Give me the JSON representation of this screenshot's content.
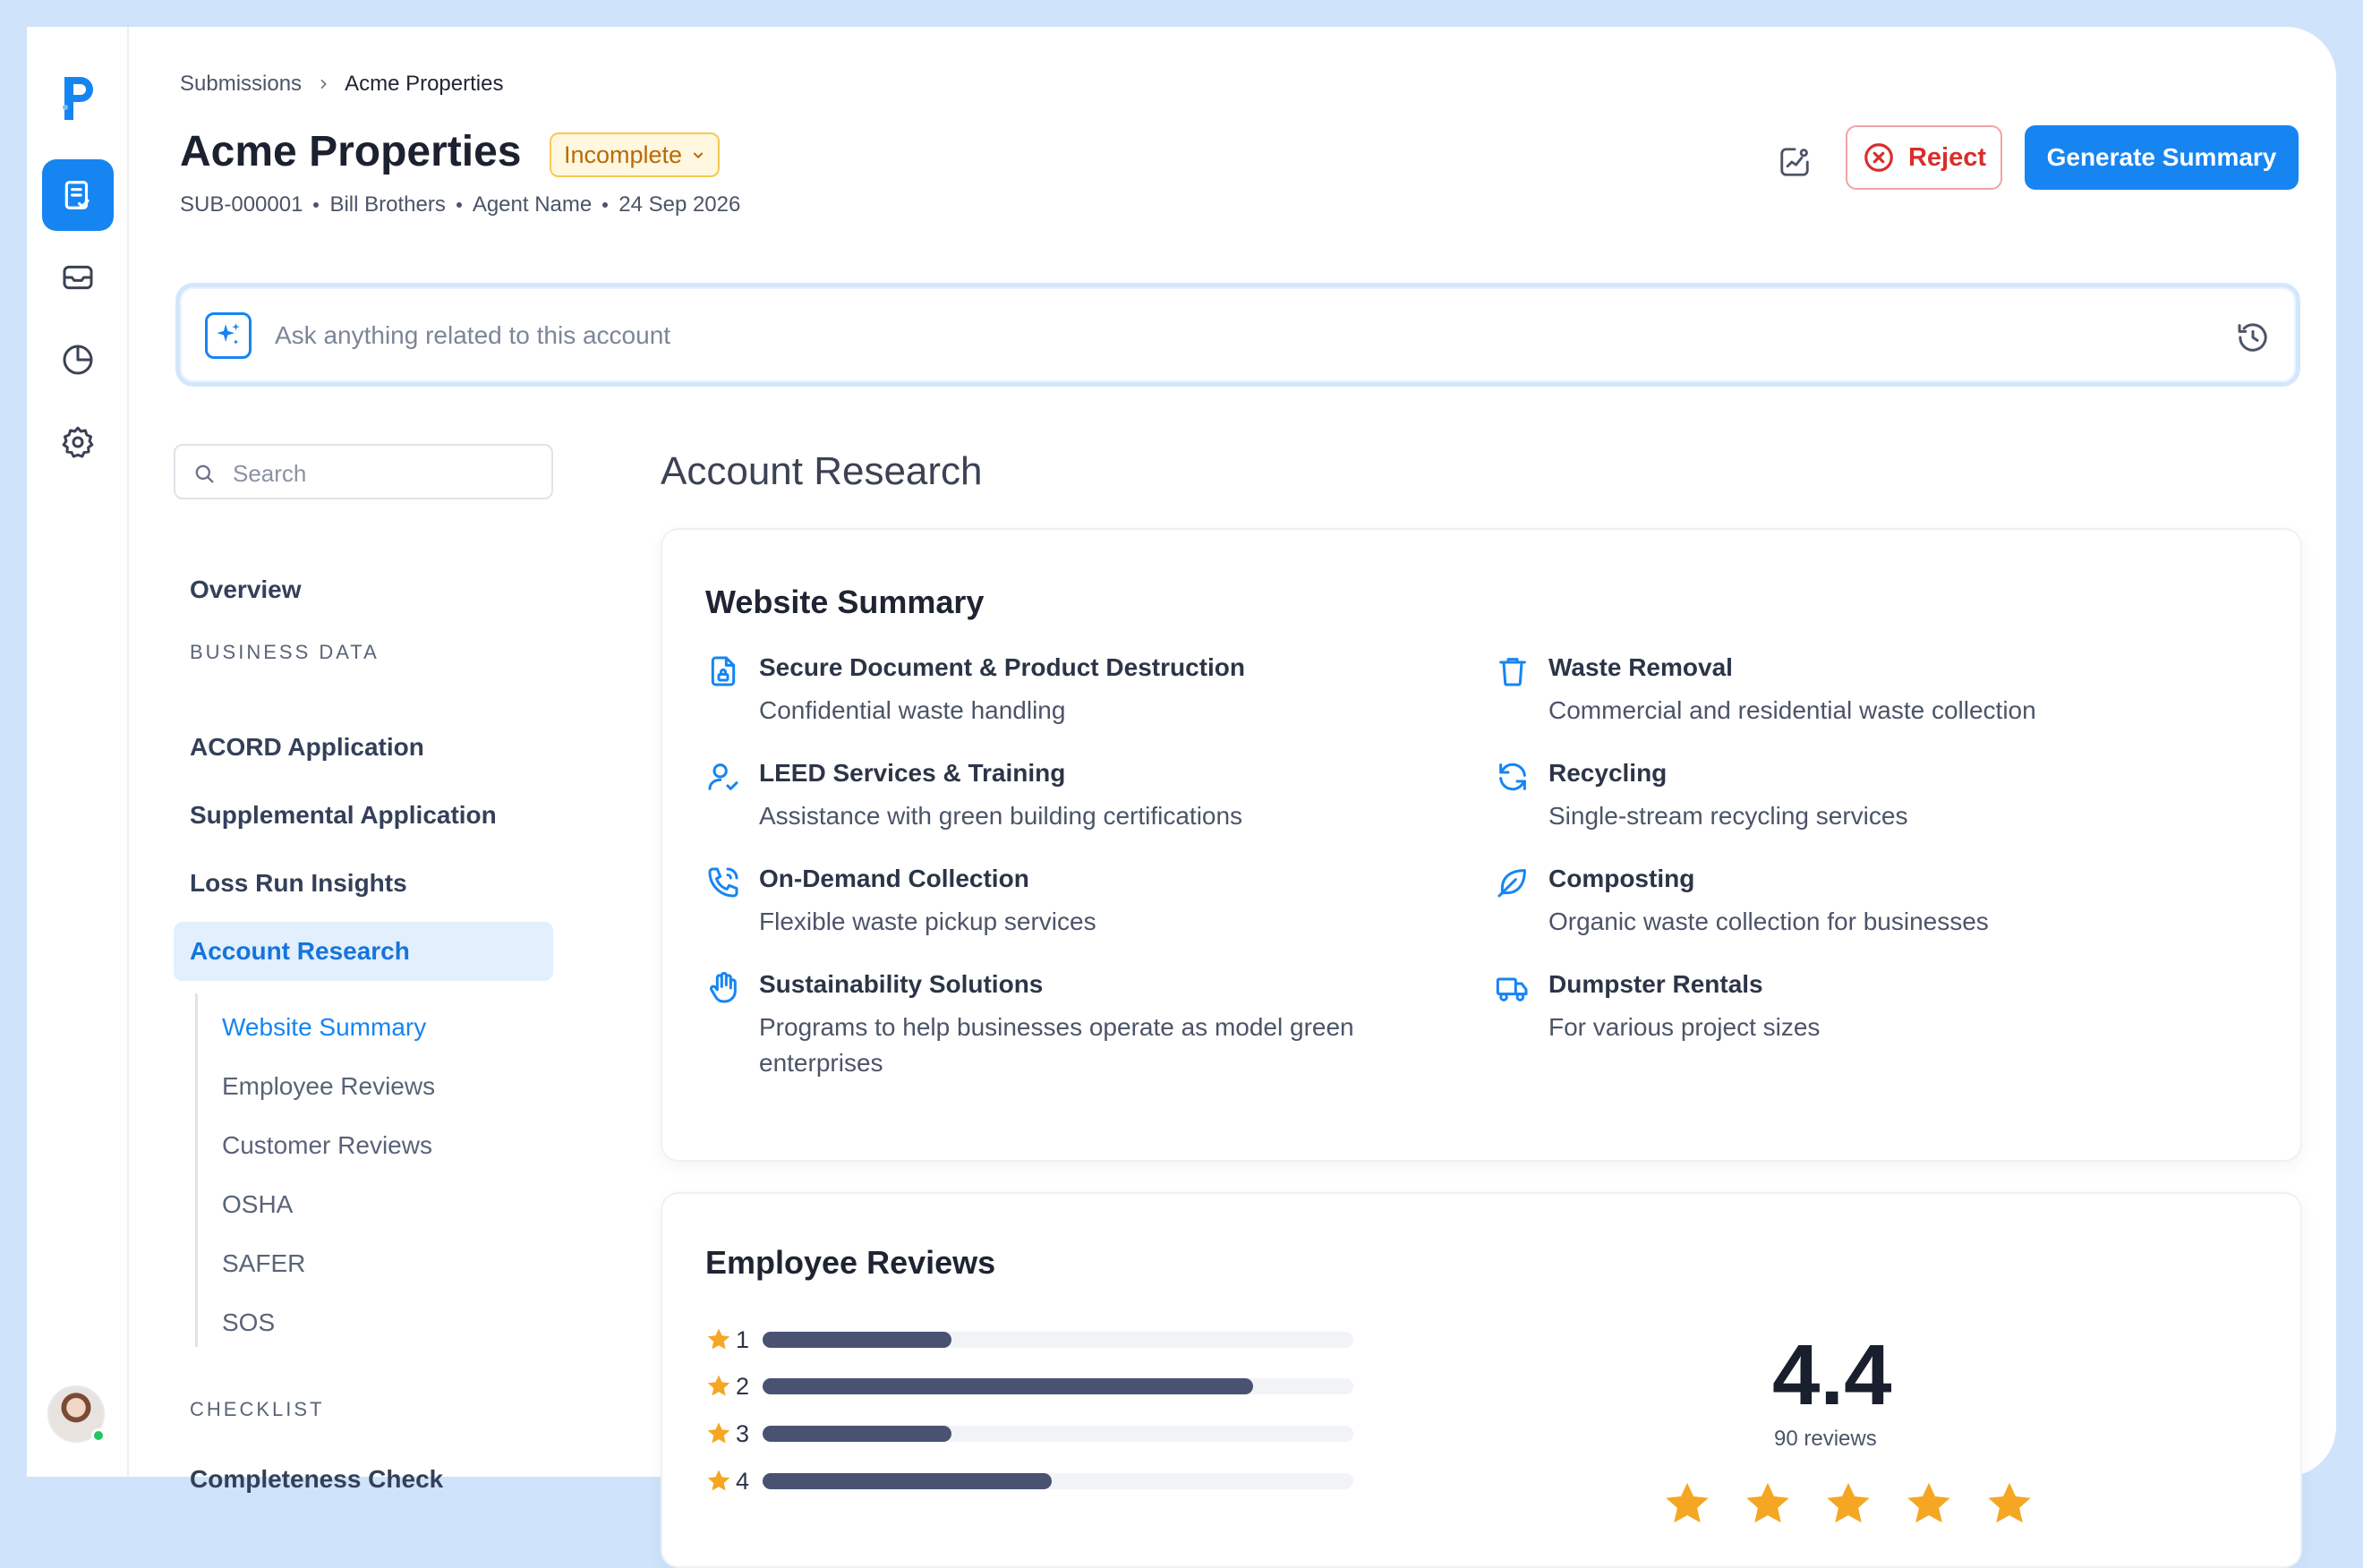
{
  "breadcrumb": {
    "parent": "Submissions",
    "current": "Acme Properties"
  },
  "header": {
    "title": "Acme Properties",
    "status": "Incomplete",
    "meta": [
      "SUB-000001",
      "Bill Brothers",
      "Agent Name",
      "24 Sep 2026"
    ],
    "reject_label": "Reject",
    "primary_label": "Generate Summary"
  },
  "ask": {
    "placeholder": "Ask anything related to this account"
  },
  "sidebar": {
    "search_placeholder": "Search",
    "overview": "Overview",
    "section_business": "BUSINESS DATA",
    "items": [
      "ACORD Application",
      "Supplemental Application",
      "Loss Run Insights",
      "Account Research"
    ],
    "subitems": [
      "Website Summary",
      "Employee Reviews",
      "Customer Reviews",
      "OSHA",
      "SAFER",
      "SOS"
    ],
    "section_checklist": "CHECKLIST",
    "checklist_item": "Completeness Check"
  },
  "main": {
    "section_title": "Account Research",
    "website": {
      "title": "Website Summary",
      "services": [
        {
          "icon": "document-lock-icon",
          "name": "Secure Document & Product Destruction",
          "desc": "Confidential waste handling"
        },
        {
          "icon": "user-check-icon",
          "name": "LEED Services & Training",
          "desc": "Assistance with green building certifications"
        },
        {
          "icon": "phone-icon",
          "name": "On-Demand Collection",
          "desc": "Flexible waste pickup services"
        },
        {
          "icon": "hand-icon",
          "name": "Sustainability Solutions",
          "desc": "Programs to help businesses operate as model green enterprises"
        },
        {
          "icon": "trash-icon",
          "name": "Waste Removal",
          "desc": "Commercial and residential waste collection"
        },
        {
          "icon": "recycle-icon",
          "name": "Recycling",
          "desc": "Single-stream recycling services"
        },
        {
          "icon": "leaf-icon",
          "name": "Composting",
          "desc": "Organic waste collection for businesses"
        },
        {
          "icon": "truck-icon",
          "name": "Dumpster Rentals",
          "desc": "For various project sizes"
        }
      ]
    },
    "employee_reviews": {
      "title": "Employee Reviews",
      "rating": "4.4",
      "count": "90 reviews",
      "bars": [
        {
          "label": "1",
          "fraction": 0.32
        },
        {
          "label": "2",
          "fraction": 0.83
        },
        {
          "label": "3",
          "fraction": 0.32
        },
        {
          "label": "4",
          "fraction": 0.49
        }
      ],
      "stars_shown": 5
    }
  },
  "colors": {
    "accent": "#1685f2",
    "danger": "#d92d2d",
    "warning": "#b96b05",
    "star": "#f5a623"
  }
}
